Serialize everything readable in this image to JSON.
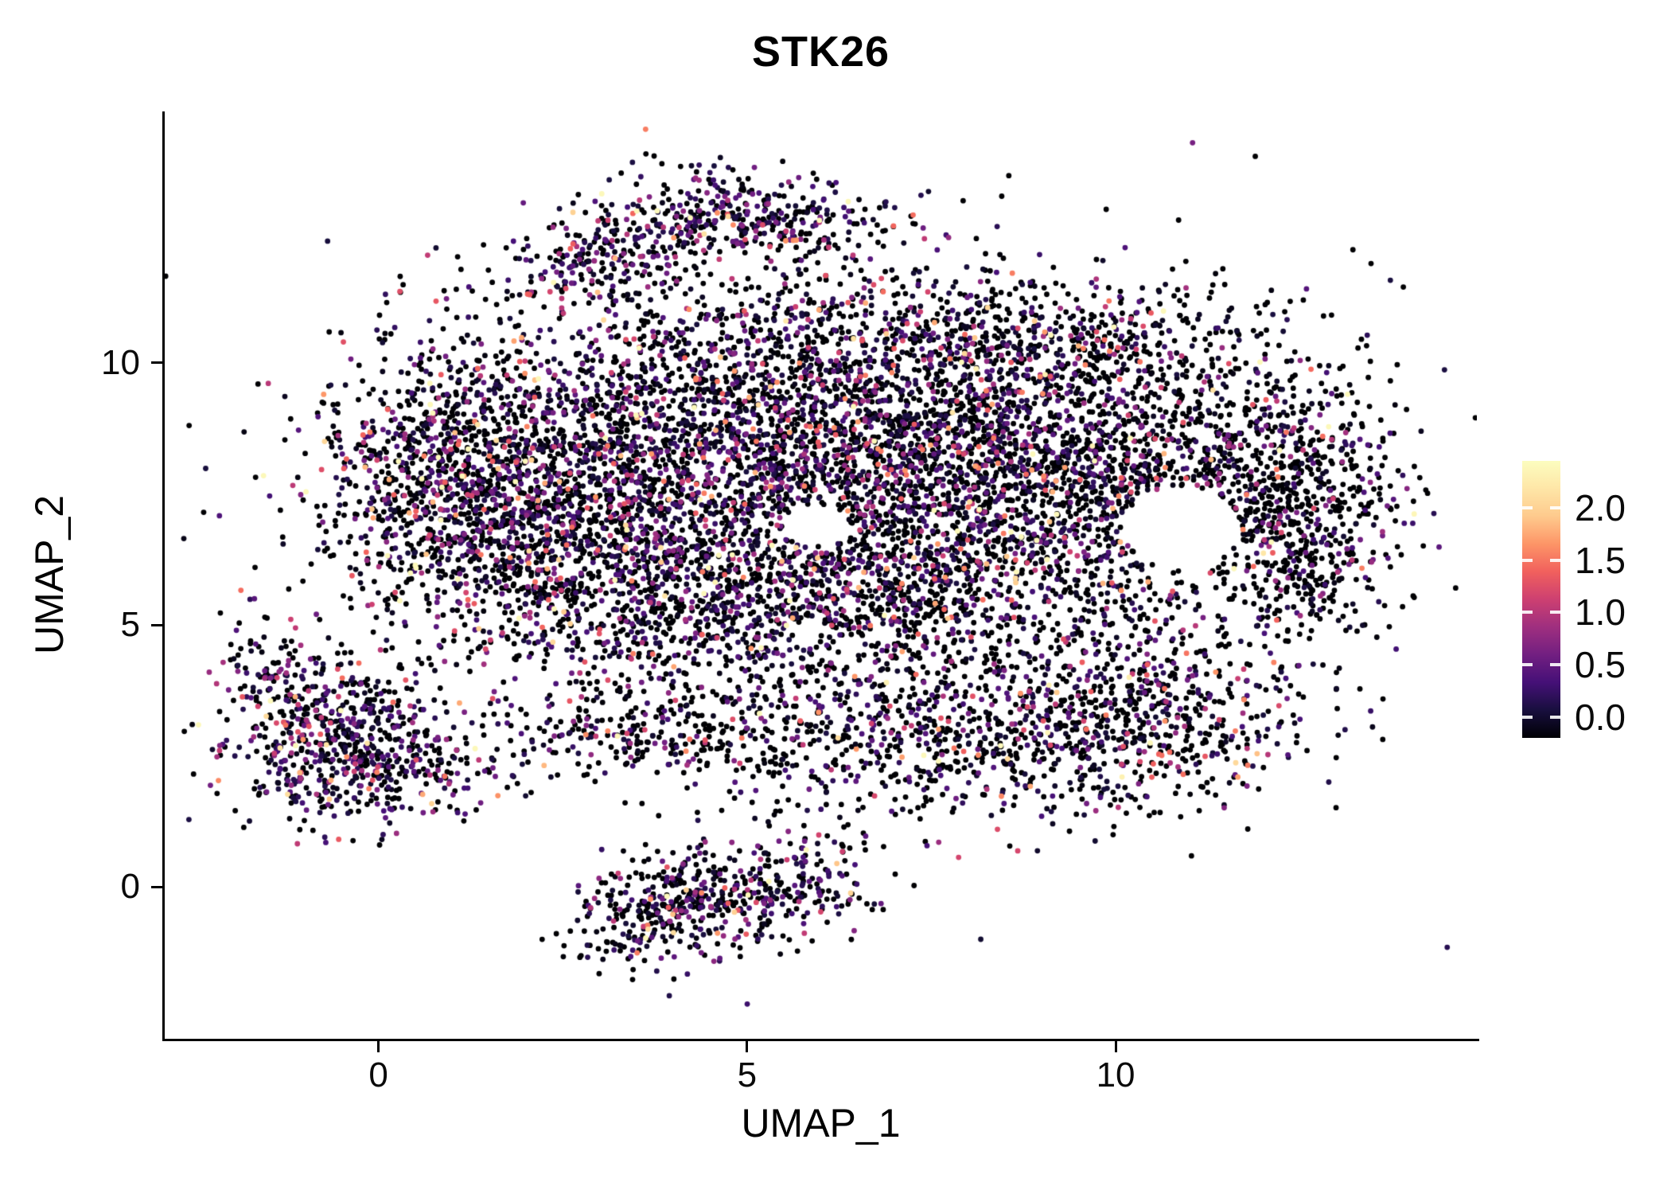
{
  "title": "STK26",
  "background_color": "#ffffff",
  "chart_data": {
    "type": "scatter",
    "title": "STK26",
    "xlabel": "UMAP_1",
    "ylabel": "UMAP_2",
    "xlim": [
      -2.9,
      14.9
    ],
    "ylim": [
      -2.9,
      14.8
    ],
    "grid": false,
    "x_ticks": [
      {
        "label": "0",
        "value": 0
      },
      {
        "label": "5",
        "value": 5
      },
      {
        "label": "10",
        "value": 10
      }
    ],
    "y_ticks": [
      {
        "label": "0",
        "value": 0
      },
      {
        "label": "5",
        "value": 5
      },
      {
        "label": "10",
        "value": 10
      }
    ],
    "point_radius": 3.4,
    "expression_scale": 0.5,
    "expression_max": 2.3,
    "legend": {
      "position": "right",
      "colormap": "magma",
      "color_max": 2.35,
      "bar_min": -0.2,
      "bar_max": 2.45,
      "ticks": [
        {
          "label": "2.0",
          "value": 2.0
        },
        {
          "label": "1.5",
          "value": 1.5
        },
        {
          "label": "1.0",
          "value": 1.0
        },
        {
          "label": "0.5",
          "value": 0.5
        },
        {
          "label": "0.0",
          "value": 0.0
        }
      ],
      "colormap_stops": [
        [
          0.0,
          "#000004"
        ],
        [
          0.1,
          "#180f3e"
        ],
        [
          0.2,
          "#451077"
        ],
        [
          0.3,
          "#721f81"
        ],
        [
          0.4,
          "#9f2f7f"
        ],
        [
          0.5,
          "#cd4071"
        ],
        [
          0.6,
          "#f1605d"
        ],
        [
          0.7,
          "#fd9567"
        ],
        [
          0.8,
          "#feca8d"
        ],
        [
          0.9,
          "#fee6a7"
        ],
        [
          1.0,
          "#fcfdbf"
        ]
      ]
    },
    "holes": [
      {
        "cx": 10.9,
        "cy": 6.85,
        "rx": 0.8,
        "ry": 0.8
      },
      {
        "cx": 5.95,
        "cy": 6.9,
        "rx": 0.45,
        "ry": 0.4
      }
    ],
    "clusters": [
      {
        "name": "main-left-tip",
        "cx": 0.7,
        "cy": 7.8,
        "sx": 0.85,
        "sy": 1.15,
        "n": 500,
        "pos": 0.5
      },
      {
        "name": "main-left",
        "cx": 2.5,
        "cy": 8.2,
        "sx": 1.5,
        "sy": 1.4,
        "n": 1350,
        "pos": 0.52
      },
      {
        "name": "main-center",
        "cx": 5.2,
        "cy": 8.8,
        "sx": 1.6,
        "sy": 1.35,
        "n": 1450,
        "pos": 0.5
      },
      {
        "name": "main-right-center",
        "cx": 8.0,
        "cy": 8.3,
        "sx": 1.5,
        "sy": 1.45,
        "n": 1600,
        "pos": 0.48
      },
      {
        "name": "main-right",
        "cx": 10.6,
        "cy": 8.1,
        "sx": 1.25,
        "sy": 1.5,
        "n": 1000,
        "pos": 0.42
      },
      {
        "name": "right-lobe",
        "cx": 12.35,
        "cy": 7.4,
        "sx": 0.8,
        "sy": 1.1,
        "n": 550,
        "pos": 0.35
      },
      {
        "name": "right-lobe-lower",
        "cx": 12.6,
        "cy": 5.9,
        "sx": 0.5,
        "sy": 0.6,
        "n": 110,
        "pos": 0.35
      },
      {
        "name": "mid-left-lower",
        "cx": 1.8,
        "cy": 6.3,
        "sx": 0.9,
        "sy": 0.8,
        "n": 330,
        "pos": 0.5
      },
      {
        "name": "mid-lower",
        "cx": 4.3,
        "cy": 5.8,
        "sx": 1.6,
        "sy": 0.95,
        "n": 850,
        "pos": 0.5
      },
      {
        "name": "mid-lower-right",
        "cx": 7.4,
        "cy": 5.6,
        "sx": 1.5,
        "sy": 0.9,
        "n": 650,
        "pos": 0.45
      },
      {
        "name": "top-fringe",
        "cx": 7.4,
        "cy": 10.6,
        "sx": 1.8,
        "sy": 0.55,
        "n": 330,
        "pos": 0.45
      },
      {
        "name": "top-fringe-right",
        "cx": 10.0,
        "cy": 10.3,
        "sx": 1.0,
        "sy": 0.5,
        "n": 150,
        "pos": 0.4
      },
      {
        "name": "band-sparse-left",
        "cx": 3.2,
        "cy": 3.0,
        "sx": 1.0,
        "sy": 0.45,
        "n": 190,
        "pos": 0.45
      },
      {
        "name": "band",
        "cx": 7.2,
        "cy": 2.9,
        "sx": 2.0,
        "sy": 0.8,
        "n": 800,
        "pos": 0.42
      },
      {
        "name": "band-right",
        "cx": 10.2,
        "cy": 3.3,
        "sx": 1.2,
        "sy": 0.95,
        "n": 600,
        "pos": 0.45
      },
      {
        "name": "left-cluster-core",
        "cx": -0.55,
        "cy": 2.85,
        "sx": 0.75,
        "sy": 0.8,
        "n": 640,
        "pos": 0.62
      },
      {
        "name": "left-cluster-tail",
        "cx": -1.45,
        "cy": 4.3,
        "sx": 0.3,
        "sy": 0.5,
        "n": 80,
        "pos": 0.5
      },
      {
        "name": "left-cluster-bridge",
        "cx": 0.9,
        "cy": 2.3,
        "sx": 0.5,
        "sy": 0.4,
        "n": 90,
        "pos": 0.5
      },
      {
        "name": "bottom-cluster-left",
        "cx": 3.8,
        "cy": -0.5,
        "sx": 0.55,
        "sy": 0.55,
        "n": 300,
        "pos": 0.55
      },
      {
        "name": "bottom-cluster-right",
        "cx": 5.3,
        "cy": 0.0,
        "sx": 0.8,
        "sy": 0.5,
        "rot": 15,
        "n": 300,
        "pos": 0.55
      },
      {
        "name": "top-arc-left",
        "cx": 3.3,
        "cy": 12.2,
        "sx": 0.85,
        "sy": 0.45,
        "rot": 28,
        "n": 300,
        "pos": 0.6
      },
      {
        "name": "top-arc-right",
        "cx": 5.3,
        "cy": 12.8,
        "sx": 0.95,
        "sy": 0.4,
        "rot": -12,
        "n": 310,
        "pos": 0.6
      },
      {
        "name": "mid-sparse",
        "cx": 3.6,
        "cy": 4.8,
        "sx": 1.2,
        "sy": 0.5,
        "n": 140,
        "pos": 0.45
      },
      {
        "name": "scatter-sparse",
        "cx": 6.6,
        "cy": 7.4,
        "sx": 3.6,
        "sy": 2.6,
        "n": 520,
        "pos": 0.4
      }
    ]
  }
}
